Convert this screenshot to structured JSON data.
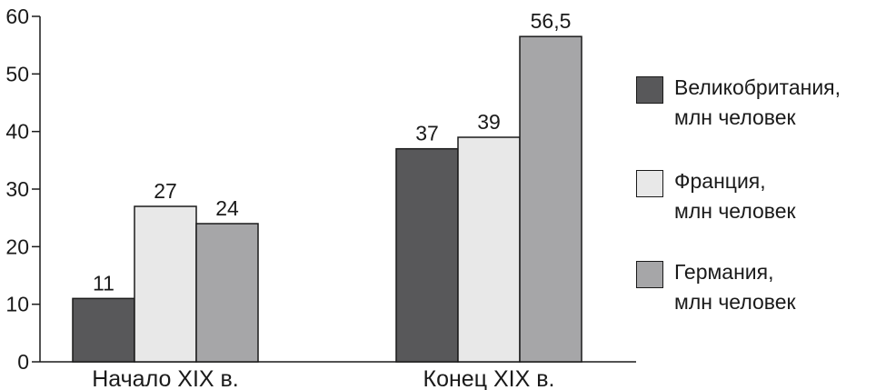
{
  "chart_data": {
    "type": "bar",
    "categories": [
      "Начало XIX в.",
      "Конец XIX в."
    ],
    "series": [
      {
        "name": "Великобритания, млн человек",
        "values": [
          11,
          37
        ],
        "labels": [
          "11",
          "37"
        ],
        "color": "#58585a"
      },
      {
        "name": "Франция, млн человек",
        "values": [
          27,
          39
        ],
        "labels": [
          "27",
          "39"
        ],
        "color": "#e8e8e8"
      },
      {
        "name": "Германия, млн человек",
        "values": [
          24,
          56.5
        ],
        "labels": [
          "24",
          "56,5"
        ],
        "color": "#a6a6a8"
      }
    ],
    "ylim": [
      0,
      60
    ],
    "yticks": [
      "0",
      "10",
      "20",
      "30",
      "40",
      "50",
      "60"
    ],
    "legend": {
      "position": "right",
      "items": [
        {
          "line1": "Великобритания,",
          "line2": "млн человек"
        },
        {
          "line1": "Франция,",
          "line2": "млн человек"
        },
        {
          "line1": "Германия,",
          "line2": "млн человек"
        }
      ]
    },
    "grid": false
  }
}
